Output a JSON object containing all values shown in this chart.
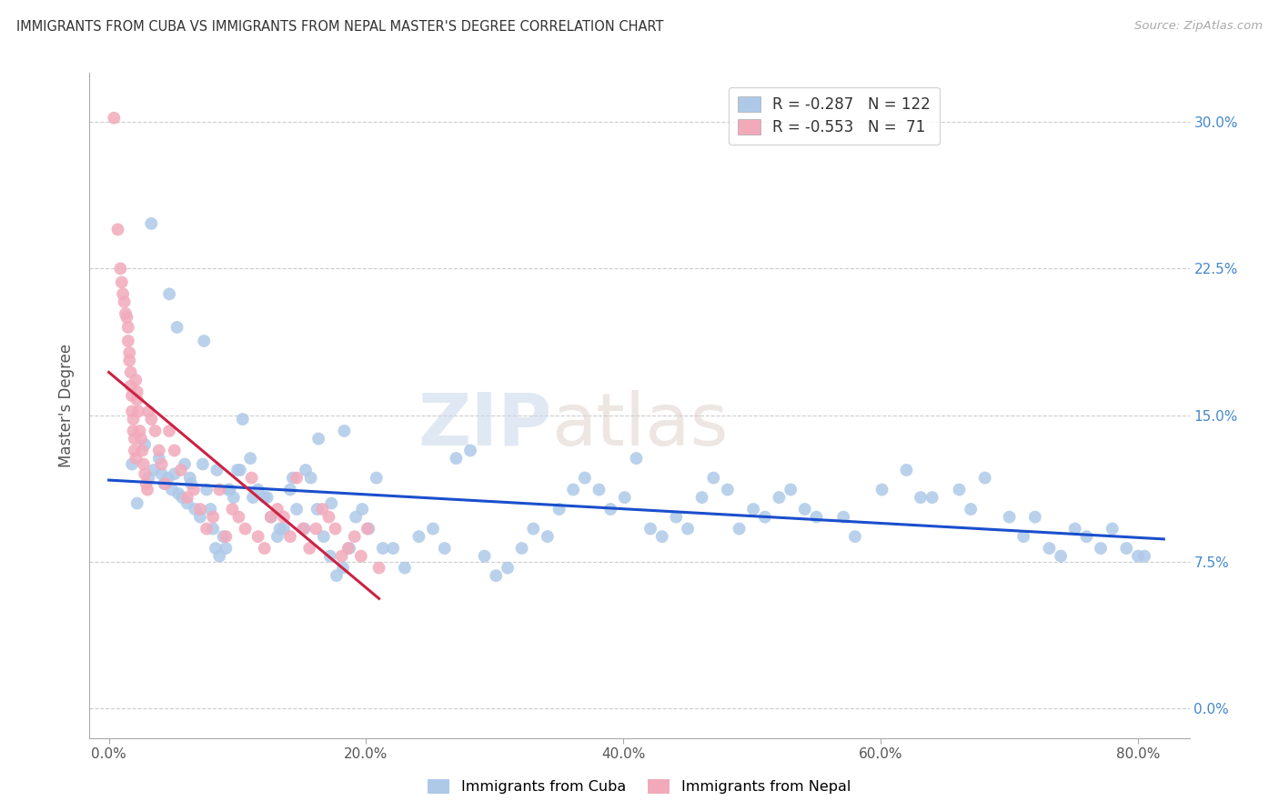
{
  "title": "IMMIGRANTS FROM CUBA VS IMMIGRANTS FROM NEPAL MASTER'S DEGREE CORRELATION CHART",
  "source": "Source: ZipAtlas.com",
  "ylabel": "Master's Degree",
  "xlabel_values": [
    0.0,
    20.0,
    40.0,
    60.0,
    80.0
  ],
  "ylabel_values": [
    0.0,
    7.5,
    15.0,
    22.5,
    30.0
  ],
  "xlim": [
    -1.5,
    84.0
  ],
  "ylim": [
    -1.5,
    32.5
  ],
  "cuba_R": -0.287,
  "cuba_N": 122,
  "nepal_R": -0.553,
  "nepal_N": 71,
  "cuba_color": "#aec9e8",
  "nepal_color": "#f2aabb",
  "cuba_line_color": "#1a4fcc",
  "nepal_line_color": "#cc2244",
  "watermark_zip": "ZIP",
  "watermark_atlas": "atlas",
  "cuba_x": [
    1.8,
    2.2,
    2.8,
    3.1,
    3.5,
    3.9,
    4.1,
    4.3,
    4.6,
    4.9,
    5.1,
    5.4,
    5.7,
    5.9,
    6.1,
    6.4,
    6.7,
    7.1,
    7.3,
    7.6,
    7.9,
    8.1,
    8.3,
    8.6,
    8.9,
    9.1,
    9.4,
    9.7,
    10.0,
    10.4,
    11.0,
    11.6,
    12.1,
    12.6,
    13.1,
    13.6,
    14.1,
    14.6,
    15.2,
    15.7,
    16.2,
    16.7,
    17.2,
    17.7,
    18.2,
    18.7,
    19.2,
    19.7,
    20.2,
    20.8,
    21.3,
    22.1,
    23.0,
    24.1,
    25.2,
    26.1,
    27.0,
    28.1,
    29.2,
    30.1,
    31.0,
    32.1,
    33.0,
    34.1,
    35.0,
    36.1,
    37.0,
    38.1,
    39.0,
    40.1,
    41.0,
    42.1,
    43.0,
    44.1,
    45.0,
    46.1,
    47.0,
    48.1,
    49.0,
    50.1,
    51.0,
    52.1,
    53.0,
    54.1,
    55.0,
    57.1,
    58.0,
    60.1,
    62.0,
    63.1,
    64.0,
    66.1,
    67.0,
    68.1,
    70.0,
    71.1,
    72.0,
    73.1,
    74.0,
    75.1,
    76.0,
    77.1,
    78.0,
    79.1,
    80.0,
    80.5,
    3.3,
    4.7,
    5.3,
    6.3,
    7.4,
    8.4,
    9.3,
    10.2,
    11.2,
    12.3,
    13.3,
    14.3,
    15.3,
    16.3,
    17.3,
    18.3
  ],
  "cuba_y": [
    12.5,
    10.5,
    13.5,
    11.8,
    12.2,
    12.8,
    12.0,
    11.5,
    11.8,
    11.2,
    12.0,
    11.0,
    10.8,
    12.5,
    10.5,
    11.5,
    10.2,
    9.8,
    12.5,
    11.2,
    10.2,
    9.2,
    8.2,
    7.8,
    8.8,
    8.2,
    11.2,
    10.8,
    12.2,
    14.8,
    12.8,
    11.2,
    10.8,
    9.8,
    8.8,
    9.2,
    11.2,
    10.2,
    9.2,
    11.8,
    10.2,
    8.8,
    7.8,
    6.8,
    7.2,
    8.2,
    9.8,
    10.2,
    9.2,
    11.8,
    8.2,
    8.2,
    7.2,
    8.8,
    9.2,
    8.2,
    12.8,
    13.2,
    7.8,
    6.8,
    7.2,
    8.2,
    9.2,
    8.8,
    10.2,
    11.2,
    11.8,
    11.2,
    10.2,
    10.8,
    12.8,
    9.2,
    8.8,
    9.8,
    9.2,
    10.8,
    11.8,
    11.2,
    9.2,
    10.2,
    9.8,
    10.8,
    11.2,
    10.2,
    9.8,
    9.8,
    8.8,
    11.2,
    12.2,
    10.8,
    10.8,
    11.2,
    10.2,
    11.8,
    9.8,
    8.8,
    9.8,
    8.2,
    7.8,
    9.2,
    8.8,
    8.2,
    9.2,
    8.2,
    7.8,
    7.8,
    24.8,
    21.2,
    19.5,
    11.8,
    18.8,
    12.2,
    11.2,
    12.2,
    10.8,
    10.8,
    9.2,
    11.8,
    12.2,
    13.8,
    10.5,
    14.2
  ],
  "nepal_x": [
    0.4,
    0.7,
    0.9,
    1.0,
    1.1,
    1.2,
    1.3,
    1.4,
    1.5,
    1.5,
    1.6,
    1.6,
    1.7,
    1.7,
    1.8,
    1.8,
    1.9,
    1.9,
    2.0,
    2.0,
    2.1,
    2.1,
    2.2,
    2.2,
    2.3,
    2.4,
    2.5,
    2.6,
    2.7,
    2.8,
    2.9,
    3.0,
    3.1,
    3.3,
    3.6,
    3.9,
    4.1,
    4.4,
    4.7,
    5.1,
    5.6,
    6.1,
    6.6,
    7.1,
    7.6,
    8.1,
    8.6,
    9.1,
    9.6,
    10.1,
    10.6,
    11.1,
    11.6,
    12.1,
    12.6,
    13.1,
    13.6,
    14.1,
    14.6,
    15.1,
    15.6,
    16.1,
    16.6,
    17.1,
    17.6,
    18.1,
    18.6,
    19.1,
    19.6,
    20.1,
    21.0
  ],
  "nepal_y": [
    30.2,
    24.5,
    22.5,
    21.8,
    21.2,
    20.8,
    20.2,
    20.0,
    19.5,
    18.8,
    18.2,
    17.8,
    17.2,
    16.5,
    16.0,
    15.2,
    14.8,
    14.2,
    13.8,
    13.2,
    12.8,
    16.8,
    16.2,
    15.8,
    15.2,
    14.2,
    13.8,
    13.2,
    12.5,
    12.0,
    11.5,
    11.2,
    15.2,
    14.8,
    14.2,
    13.2,
    12.5,
    11.5,
    14.2,
    13.2,
    12.2,
    10.8,
    11.2,
    10.2,
    9.2,
    9.8,
    11.2,
    8.8,
    10.2,
    9.8,
    9.2,
    11.8,
    8.8,
    8.2,
    9.8,
    10.2,
    9.8,
    8.8,
    11.8,
    9.2,
    8.2,
    9.2,
    10.2,
    9.8,
    9.2,
    7.8,
    8.2,
    8.8,
    7.8,
    9.2,
    7.2
  ]
}
